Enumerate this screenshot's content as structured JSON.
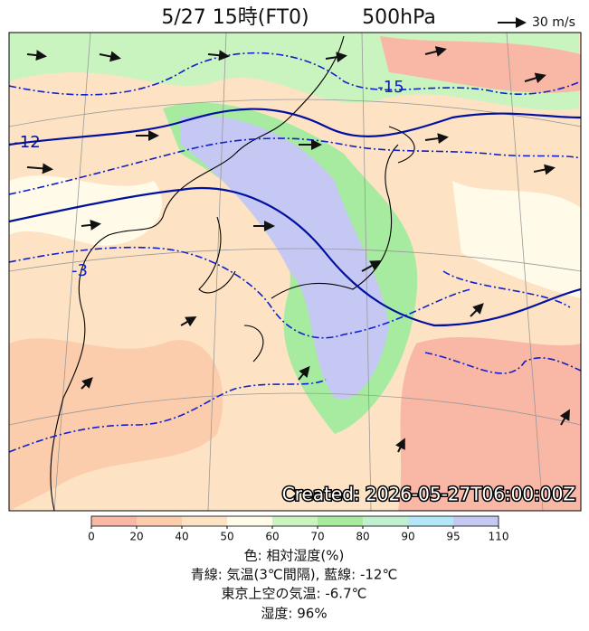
{
  "title": "5/27 15時(FT0)",
  "level": "500hPa",
  "wind_legend": "30 m/s",
  "contour_labels": [
    "-15",
    "-12",
    "-3"
  ],
  "created": "Created: 2026-05-27T06:00:00Z",
  "colorbar": {
    "ticks": [
      0,
      20,
      40,
      50,
      60,
      70,
      80,
      90,
      95,
      110
    ],
    "colors": [
      "#f9b7a6",
      "#fbcdac",
      "#fde3c3",
      "#fffbe8",
      "#c9f3bf",
      "#a6eb9f",
      "#c0f0cf",
      "#b3e6f7",
      "#c4c8f2"
    ]
  },
  "caption": [
    "色: 相対湿度(%)",
    "青線: 気温(3℃間隔), 藍線: -12℃",
    "東京上空の気温: -6.7℃",
    "湿度: 96%"
  ]
}
